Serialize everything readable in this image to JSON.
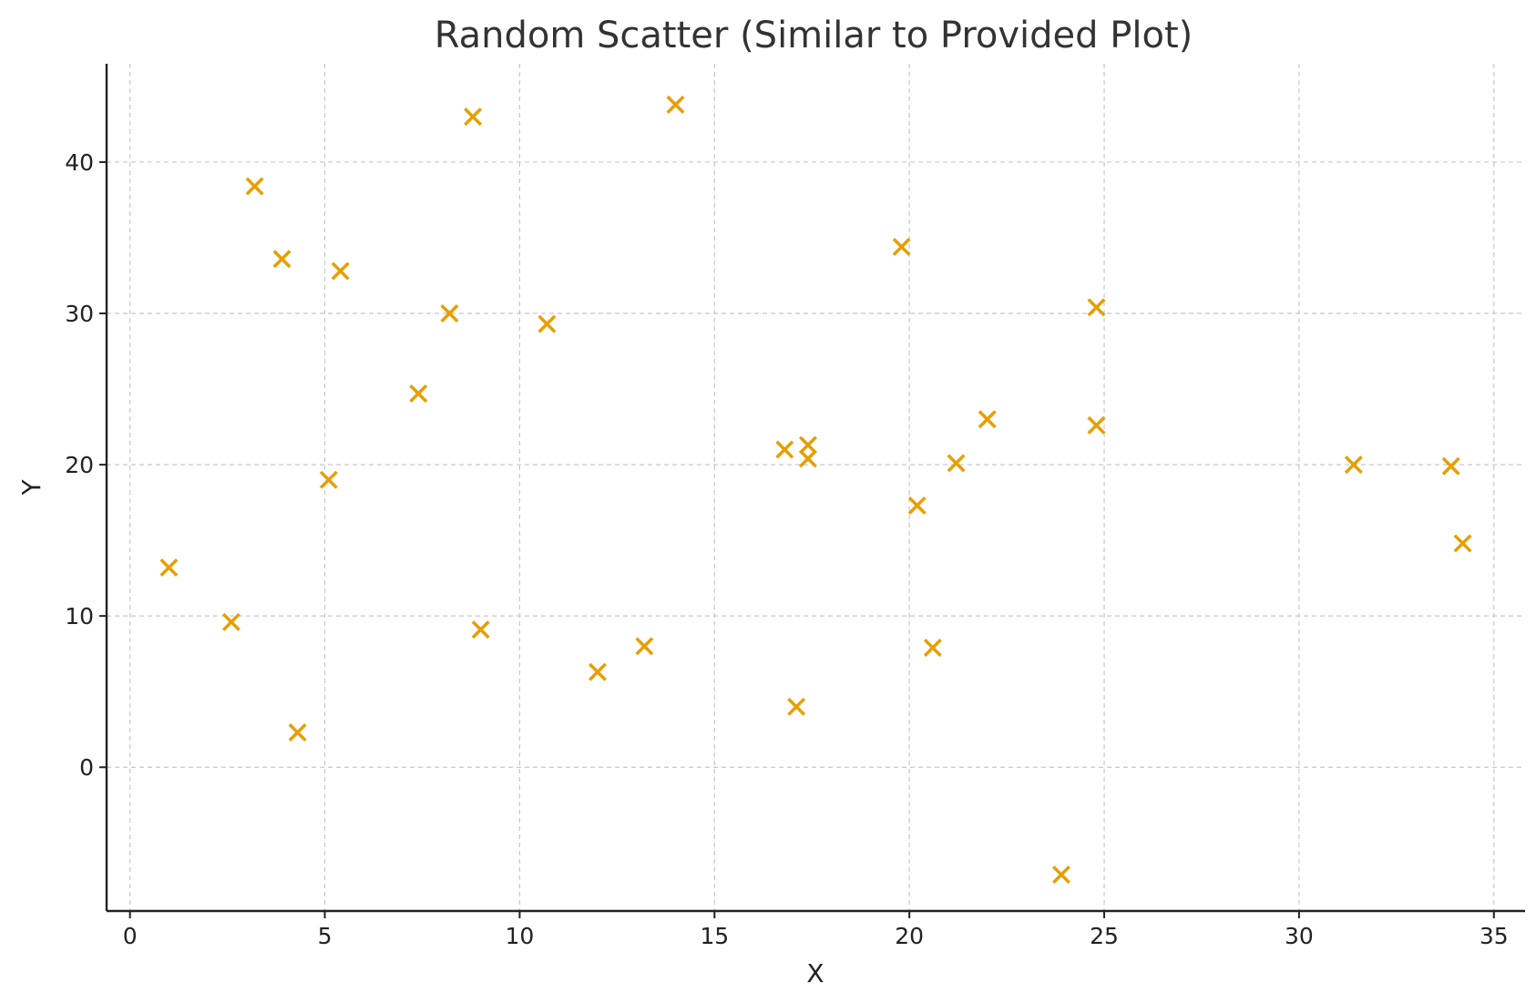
{
  "chart_data": {
    "type": "scatter",
    "title": "Random Scatter (Similar to Provided Plot)",
    "xlabel": "X",
    "ylabel": "Y",
    "xlim": [
      -0.6,
      35.8
    ],
    "ylim": [
      -9.5,
      46.5
    ],
    "xticks": [
      0,
      5,
      10,
      15,
      20,
      25,
      30,
      35
    ],
    "yticks": [
      0,
      10,
      20,
      30,
      40
    ],
    "grid": true,
    "marker": "x",
    "color": "#E69F00",
    "series": [
      {
        "points": [
          [
            1.0,
            13.2
          ],
          [
            2.6,
            9.6
          ],
          [
            3.2,
            38.4
          ],
          [
            3.9,
            33.6
          ],
          [
            4.3,
            2.3
          ],
          [
            5.1,
            19.0
          ],
          [
            5.4,
            32.8
          ],
          [
            7.4,
            24.7
          ],
          [
            8.2,
            30.0
          ],
          [
            8.8,
            43.0
          ],
          [
            9.0,
            9.1
          ],
          [
            10.7,
            29.3
          ],
          [
            12.0,
            6.3
          ],
          [
            13.2,
            8.0
          ],
          [
            14.0,
            43.8
          ],
          [
            16.8,
            21.0
          ],
          [
            17.1,
            4.0
          ],
          [
            17.4,
            21.3
          ],
          [
            17.4,
            20.4
          ],
          [
            19.8,
            34.4
          ],
          [
            20.2,
            17.3
          ],
          [
            20.6,
            7.9
          ],
          [
            21.2,
            20.1
          ],
          [
            22.0,
            23.0
          ],
          [
            23.9,
            -7.1
          ],
          [
            24.8,
            22.6
          ],
          [
            24.8,
            30.4
          ],
          [
            31.4,
            20.0
          ],
          [
            33.9,
            19.9
          ],
          [
            34.2,
            14.8
          ]
        ]
      }
    ]
  }
}
